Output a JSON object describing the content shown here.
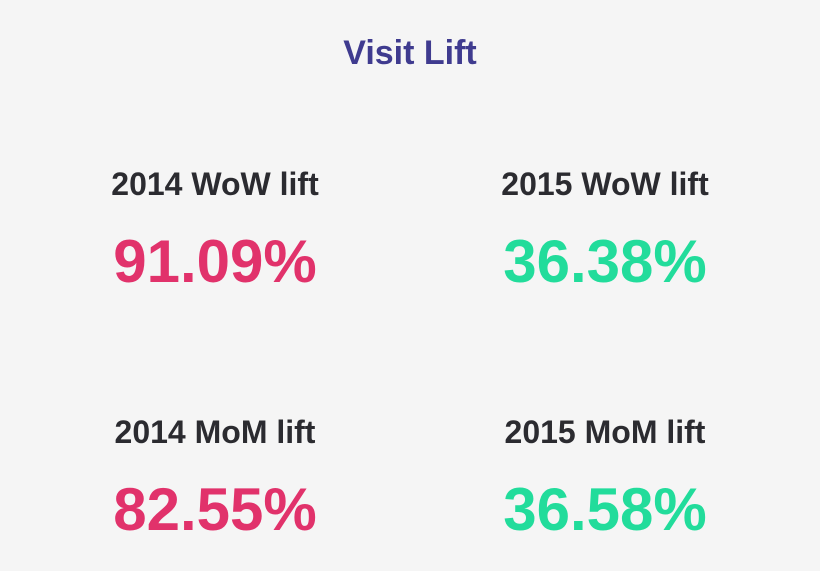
{
  "title": "Visit Lift",
  "metrics": [
    {
      "label": "2014 WoW lift",
      "value": "91.09%"
    },
    {
      "label": "2015 WoW lift",
      "value": "36.38%"
    },
    {
      "label": "2014 MoM lift",
      "value": "82.55%"
    },
    {
      "label": "2015 MoM lift",
      "value": "36.58%"
    }
  ]
}
